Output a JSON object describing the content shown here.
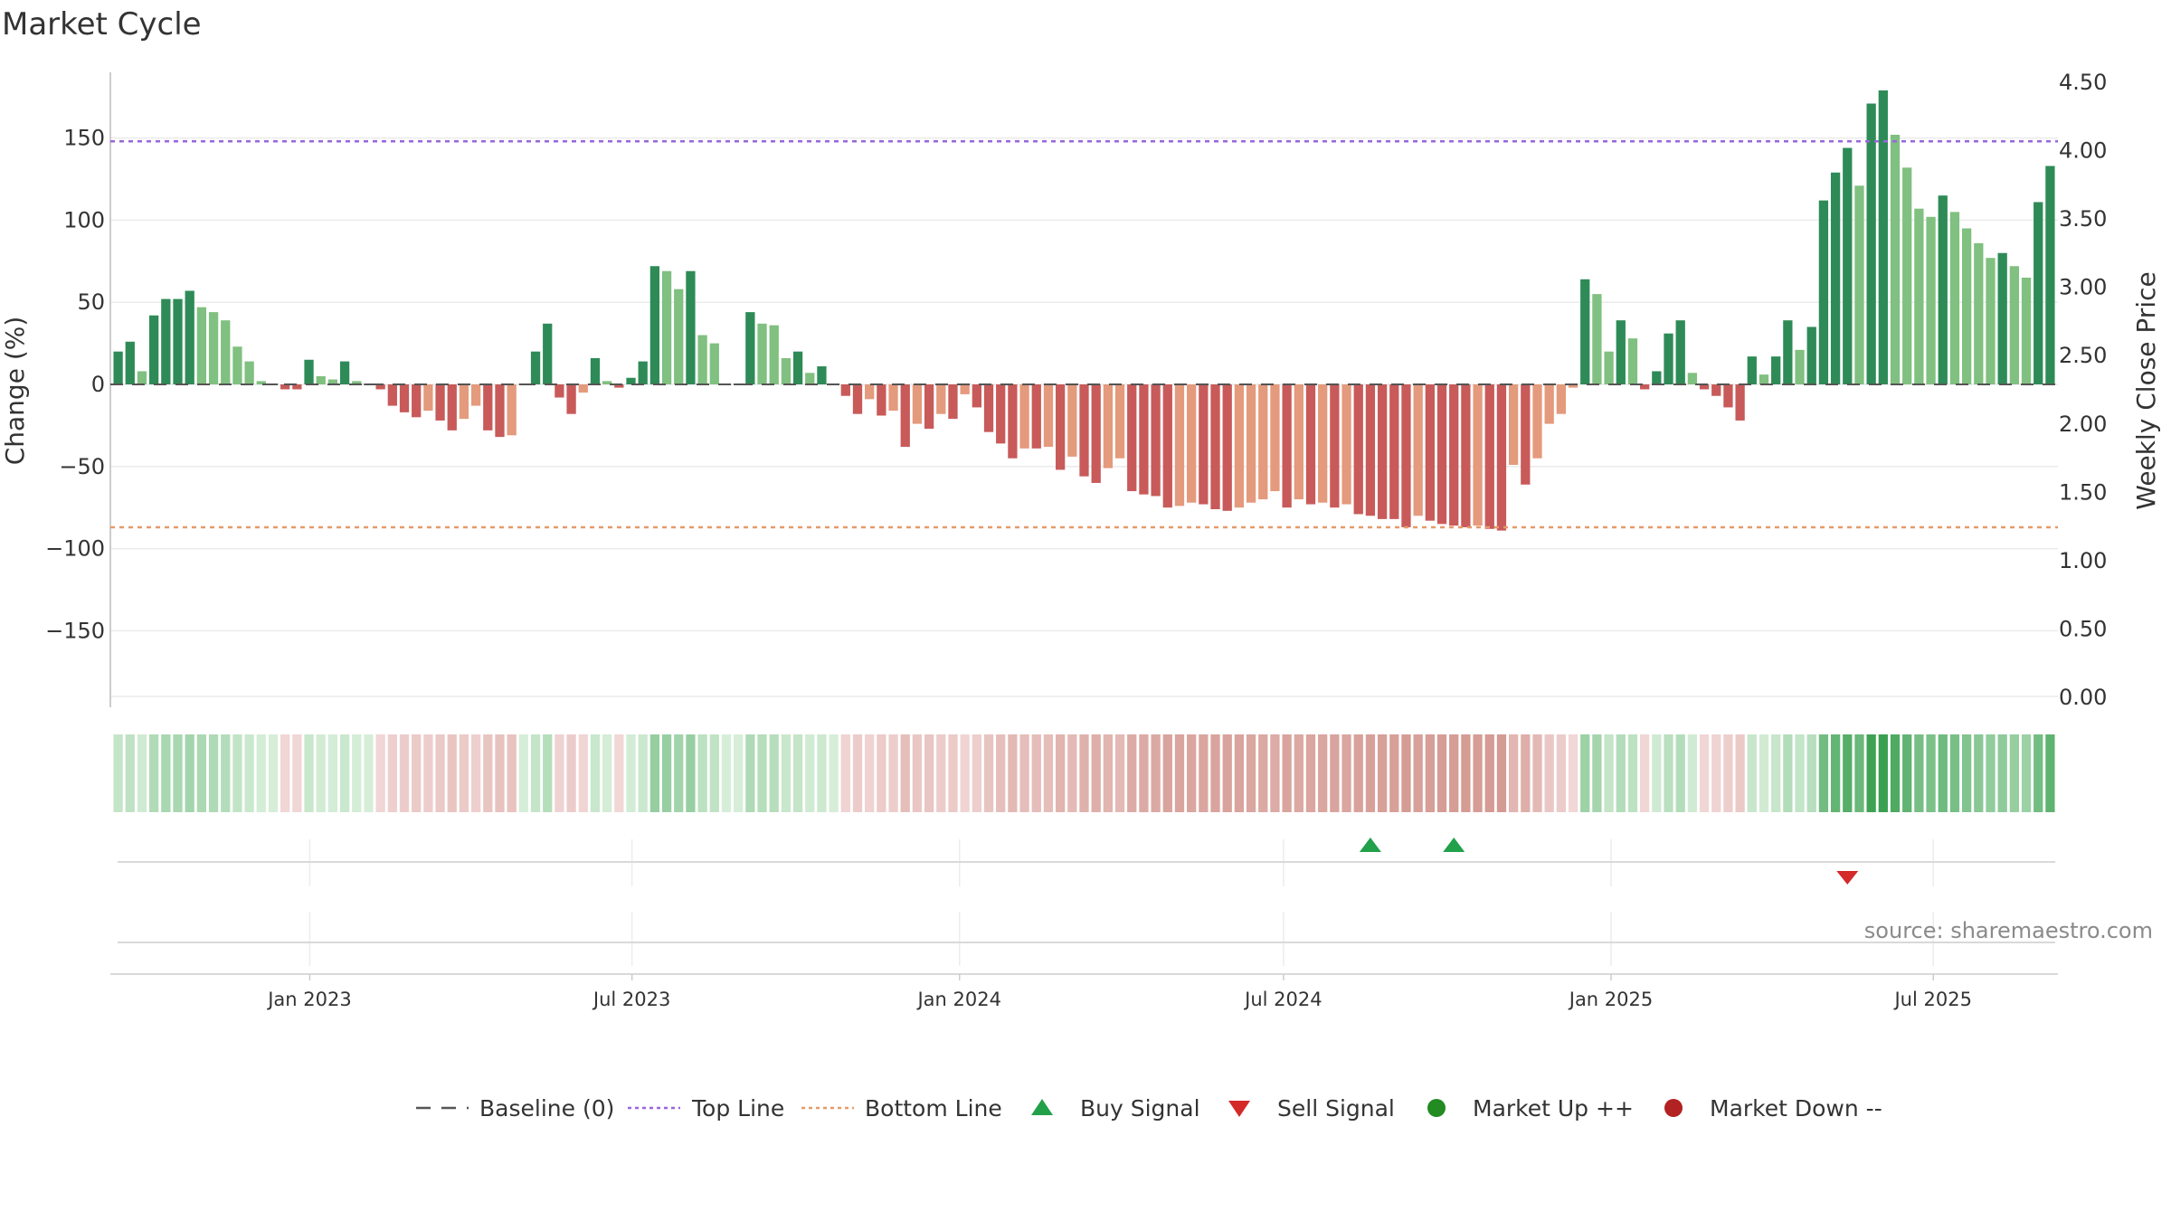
{
  "chart_data": {
    "type": "bar",
    "title": "Market Cycle",
    "ylabel": "Change (%)",
    "y2label": "Weekly Close Price",
    "ylim": [
      -190,
      190
    ],
    "y_ticks": [
      150,
      100,
      50,
      0,
      -50,
      -100,
      -150
    ],
    "y_tick_labels": [
      "150",
      "100",
      "50",
      "0",
      "−50",
      "−100",
      "−150"
    ],
    "y2lim": [
      0,
      4.5
    ],
    "y2_ticks": [
      "4.50",
      "4.00",
      "3.50",
      "3.00",
      "2.50",
      "2.00",
      "1.50",
      "1.00",
      "0.50",
      "0.00"
    ],
    "x_start": "2022-09-12",
    "x_end": "2025-09-08",
    "x_tick_dates": [
      "2023-01-01",
      "2023-07-01",
      "2024-01-01",
      "2024-07-01",
      "2025-01-01",
      "2025-07-01"
    ],
    "x_tick_labels": [
      "Jan 2023",
      "Jul 2023",
      "Jan 2024",
      "Jul 2024",
      "Jan 2025",
      "Jul 2025"
    ],
    "top_line": 148,
    "bottom_line": -87,
    "baseline": 0,
    "values": [
      20,
      26,
      8,
      42,
      52,
      52,
      57,
      47,
      44,
      39,
      23,
      14,
      2,
      0,
      -3,
      -3,
      15,
      5,
      3,
      14,
      2,
      0,
      -3,
      -13,
      -17,
      -20,
      -16,
      -22,
      -28,
      -21,
      -13,
      -28,
      -32,
      -31,
      0,
      20,
      37,
      -8,
      -18,
      -5,
      16,
      2,
      -2,
      4,
      14,
      72,
      69,
      58,
      69,
      30,
      25,
      0,
      0,
      44,
      37,
      36,
      16,
      20,
      7,
      11,
      0,
      -7,
      -18,
      -9,
      -19,
      -16,
      -38,
      -24,
      -27,
      -18,
      -21,
      -6,
      -14,
      -29,
      -36,
      -45,
      -39,
      -39,
      -38,
      -52,
      -44,
      -56,
      -60,
      -51,
      -45,
      -65,
      -67,
      -68,
      -75,
      -74,
      -72,
      -73,
      -76,
      -77,
      -75,
      -72,
      -70,
      -65,
      -75,
      -70,
      -73,
      -72,
      -75,
      -73,
      -79,
      -80,
      -82,
      -82,
      -87,
      -80,
      -83,
      -85,
      -86,
      -87,
      -86,
      -88,
      -89,
      -49,
      -61,
      -45,
      -24,
      -18,
      -2,
      64,
      55,
      20,
      39,
      28,
      -3,
      8,
      31,
      39,
      7,
      -3,
      -7,
      -14,
      -22,
      17,
      6,
      17,
      39,
      21,
      35,
      112,
      129,
      144,
      121,
      171,
      179,
      152,
      132,
      107,
      102,
      115,
      105,
      95,
      86,
      77,
      80,
      72,
      65,
      111,
      133
    ],
    "signals": [
      {
        "type": "buy",
        "index": 105
      },
      {
        "type": "buy",
        "index": 112
      },
      {
        "type": "sell",
        "index": 145
      }
    ],
    "legend": [
      "Baseline (0)",
      "Top Line",
      "Bottom Line",
      "Buy Signal",
      "Sell Signal",
      "Market Up ++",
      "Market Down --"
    ],
    "legend_position": "bottom-center",
    "source": "source: sharemaestro.com",
    "colors": {
      "bar_up_dark": "#2e8b57",
      "bar_up_light": "#80c080",
      "bar_down_dark": "#c85a5a",
      "bar_down_light": "#e49a7c",
      "top_line": "#9966dd",
      "bottom_line": "#e59a6a",
      "buy": "#22a04a",
      "sell": "#d42a2a",
      "market_up": "#228b22",
      "market_down": "#b22222",
      "baseline": "#555555"
    }
  }
}
